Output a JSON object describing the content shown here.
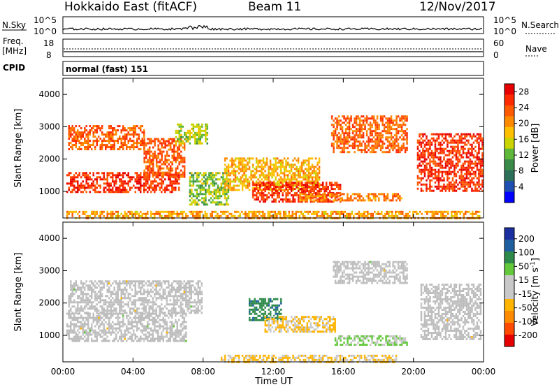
{
  "header": {
    "station": "Hokkaido East (fitACF)",
    "beam": "Beam 11",
    "date": "12/Nov/2017"
  },
  "noise_panel": {
    "left_label": "N.Sky",
    "right_label": "N.Search",
    "left_ticks": [
      "10^5",
      "10^0"
    ],
    "right_ticks": [
      "10^5",
      "10^0"
    ]
  },
  "freq_panel": {
    "left_label_line1": "Freq.",
    "left_label_line2": "[MHz]",
    "left_ticks": [
      "18",
      "8"
    ],
    "right_label": "Nave",
    "right_ticks": [
      "60",
      "0"
    ]
  },
  "cpid_panel": {
    "label": "CPID",
    "text": "normal (fast) 151"
  },
  "x_axis": {
    "label": "Time UT",
    "tick_labels": [
      "00:00",
      "04:00",
      "08:00",
      "12:00",
      "16:00",
      "20:00",
      "00:00"
    ]
  },
  "colors": {
    "power_scale": [
      "#0000ff",
      "#1f4fb0",
      "#2e6f5a",
      "#3a8a4a",
      "#5fb83a",
      "#c9d400",
      "#ffc000",
      "#ff8a00",
      "#ff5a00",
      "#ff2a00",
      "#e60000"
    ],
    "velocity_scale": [
      "#e60000",
      "#ff4a00",
      "#ff8c00",
      "#ffb400",
      "#c8c8c8",
      "#c8c8c8",
      "#63c83c",
      "#2e8a4a",
      "#1f5fa0",
      "#1c2fa0"
    ],
    "ground_scatter": "#bdbdbd"
  },
  "chart_data": [
    {
      "type": "heatmap",
      "title": "",
      "xlabel": "",
      "ylabel": "Slant Range [km]",
      "xlim": [
        0,
        24
      ],
      "ylim": [
        180,
        4500
      ],
      "y_ticks": [
        "1000",
        "2000",
        "3000",
        "4000"
      ],
      "colorbar": {
        "label": "Power [dB]",
        "ticks": [
          "4",
          "8",
          "12",
          "16",
          "20",
          "24",
          "28"
        ],
        "range": [
          0,
          30
        ]
      },
      "regions": [
        {
          "t": [
            0.2,
            6.6
          ],
          "r": [
            1000,
            1600
          ],
          "level": 27
        },
        {
          "t": [
            0.3,
            4.6
          ],
          "r": [
            2300,
            3050
          ],
          "level": 24
        },
        {
          "t": [
            4.6,
            6.9
          ],
          "r": [
            1450,
            2650
          ],
          "level": 24
        },
        {
          "t": [
            6.4,
            8.2
          ],
          "r": [
            2500,
            3100
          ],
          "level": 14
        },
        {
          "t": [
            7.2,
            9.4
          ],
          "r": [
            600,
            1600
          ],
          "level": 13
        },
        {
          "t": [
            9.2,
            14.6
          ],
          "r": [
            1050,
            2050
          ],
          "level": 19
        },
        {
          "t": [
            10.8,
            15.8
          ],
          "r": [
            700,
            1300
          ],
          "level": 27
        },
        {
          "t": [
            15.3,
            19.6
          ],
          "r": [
            2200,
            3350
          ],
          "level": 24
        },
        {
          "t": [
            13.5,
            19.3
          ],
          "r": [
            700,
            950
          ],
          "level": 22
        },
        {
          "t": [
            20.2,
            23.9
          ],
          "r": [
            1000,
            2800
          ],
          "level": 27
        },
        {
          "t": [
            0.2,
            23.8
          ],
          "r": [
            180,
            400
          ],
          "level": 20
        }
      ]
    },
    {
      "type": "heatmap",
      "title": "",
      "xlabel": "Time UT",
      "ylabel": "Slant Range [km]",
      "xlim": [
        0,
        24
      ],
      "ylim": [
        180,
        4500
      ],
      "y_ticks": [
        "1000",
        "2000",
        "3000",
        "4000"
      ],
      "colorbar": {
        "label": "Velocity [m s^-1]",
        "ticks": [
          "200",
          "100",
          "50",
          "15",
          "-15",
          "-50",
          "-100",
          "-200"
        ],
        "range": [
          -250,
          250
        ]
      },
      "regions": [
        {
          "t": [
            0.2,
            7.0
          ],
          "r": [
            800,
            1700
          ],
          "value": 0
        },
        {
          "t": [
            0.3,
            7.9
          ],
          "r": [
            1700,
            2700
          ],
          "value": 0
        },
        {
          "t": [
            10.6,
            12.4
          ],
          "r": [
            1500,
            2150
          ],
          "value": 150
        },
        {
          "t": [
            11.5,
            15.5
          ],
          "r": [
            1100,
            1600
          ],
          "value": -60
        },
        {
          "t": [
            15.5,
            19.6
          ],
          "r": [
            700,
            1000
          ],
          "value": 60
        },
        {
          "t": [
            15.4,
            19.6
          ],
          "r": [
            2600,
            3300
          ],
          "value": 0
        },
        {
          "t": [
            20.4,
            23.8
          ],
          "r": [
            900,
            2600
          ],
          "value": 0
        },
        {
          "t": [
            9.0,
            19.0
          ],
          "r": [
            180,
            400
          ],
          "value": -60
        }
      ]
    }
  ]
}
